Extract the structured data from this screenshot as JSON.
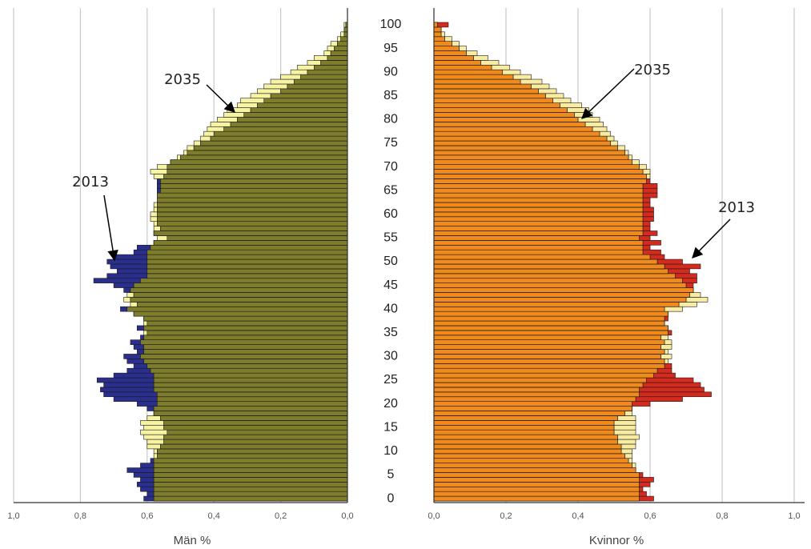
{
  "chart_data": [
    {
      "type": "bar",
      "orientation": "horizontal",
      "direction": "left",
      "xlabel": "Män %",
      "xlim": [
        1,
        0
      ],
      "xticks": [
        {
          "value": 1,
          "label": "1,0"
        },
        {
          "value": 0.8,
          "label": "0,8"
        },
        {
          "value": 0.6,
          "label": "0,6"
        },
        {
          "value": 0.4,
          "label": "0,4"
        },
        {
          "value": 0.2,
          "label": "0,2"
        },
        {
          "value": 0,
          "label": "0,0"
        }
      ],
      "grid": true,
      "overlap_color": "#7e7d2c",
      "y": [
        0,
        1,
        2,
        3,
        4,
        5,
        6,
        7,
        8,
        9,
        10,
        11,
        12,
        13,
        14,
        15,
        16,
        17,
        18,
        19,
        20,
        21,
        22,
        23,
        24,
        25,
        26,
        27,
        28,
        29,
        30,
        31,
        32,
        33,
        34,
        35,
        36,
        37,
        38,
        39,
        40,
        41,
        42,
        43,
        44,
        45,
        46,
        47,
        48,
        49,
        50,
        51,
        52,
        53,
        54,
        55,
        56,
        57,
        58,
        59,
        60,
        61,
        62,
        63,
        64,
        65,
        66,
        67,
        68,
        69,
        70,
        71,
        72,
        73,
        74,
        75,
        76,
        77,
        78,
        79,
        80,
        81,
        82,
        83,
        84,
        85,
        86,
        87,
        88,
        89,
        90,
        91,
        92,
        93,
        94,
        95,
        96,
        97,
        98,
        99,
        100
      ],
      "ylim": [
        -0.5,
        100.5
      ],
      "yticks": [
        0,
        5,
        10,
        15,
        20,
        25,
        30,
        35,
        40,
        45,
        50,
        55,
        60,
        65,
        70,
        75,
        80,
        85,
        90,
        95,
        100
      ],
      "series": [
        {
          "name": "2013",
          "color": "#2a2e8c",
          "values": [
            0.61,
            0.6,
            0.62,
            0.63,
            0.62,
            0.64,
            0.66,
            0.62,
            0.59,
            0.57,
            0.57,
            0.56,
            0.55,
            0.55,
            0.54,
            0.55,
            0.55,
            0.56,
            0.58,
            0.6,
            0.63,
            0.7,
            0.73,
            0.74,
            0.73,
            0.75,
            0.7,
            0.66,
            0.64,
            0.66,
            0.67,
            0.63,
            0.64,
            0.65,
            0.62,
            0.6,
            0.63,
            0.6,
            0.61,
            0.64,
            0.68,
            0.63,
            0.65,
            0.64,
            0.67,
            0.7,
            0.76,
            0.72,
            0.69,
            0.71,
            0.72,
            0.7,
            0.64,
            0.63,
            0.58,
            0.54,
            0.58,
            0.56,
            0.57,
            0.57,
            0.57,
            0.57,
            0.57,
            0.57,
            0.57,
            0.57,
            0.57,
            0.57,
            0.55,
            0.54,
            0.54,
            0.53,
            0.5,
            0.48,
            0.46,
            0.44,
            0.41,
            0.4,
            0.37,
            0.35,
            0.33,
            0.31,
            0.29,
            0.27,
            0.25,
            0.23,
            0.2,
            0.18,
            0.16,
            0.14,
            0.12,
            0.1,
            0.08,
            0.06,
            0.05,
            0.04,
            0.03,
            0.02,
            0.01,
            0.01,
            0.005
          ]
        },
        {
          "name": "2035",
          "color": "#f6f4a2",
          "values": [
            0.58,
            0.58,
            0.58,
            0.58,
            0.58,
            0.58,
            0.58,
            0.58,
            0.58,
            0.58,
            0.58,
            0.6,
            0.6,
            0.61,
            0.62,
            0.61,
            0.62,
            0.6,
            0.58,
            0.58,
            0.57,
            0.57,
            0.57,
            0.58,
            0.58,
            0.58,
            0.58,
            0.59,
            0.6,
            0.61,
            0.62,
            0.61,
            0.61,
            0.62,
            0.61,
            0.61,
            0.61,
            0.61,
            0.61,
            0.64,
            0.66,
            0.65,
            0.67,
            0.66,
            0.65,
            0.64,
            0.62,
            0.6,
            0.6,
            0.6,
            0.6,
            0.6,
            0.6,
            0.59,
            0.58,
            0.57,
            0.58,
            0.58,
            0.58,
            0.59,
            0.59,
            0.58,
            0.58,
            0.57,
            0.57,
            0.56,
            0.56,
            0.56,
            0.58,
            0.59,
            0.57,
            0.53,
            0.51,
            0.49,
            0.48,
            0.46,
            0.44,
            0.43,
            0.42,
            0.41,
            0.39,
            0.37,
            0.36,
            0.33,
            0.32,
            0.29,
            0.27,
            0.25,
            0.23,
            0.2,
            0.17,
            0.15,
            0.12,
            0.1,
            0.07,
            0.06,
            0.05,
            0.03,
            0.02,
            0.01,
            0.01
          ]
        }
      ]
    },
    {
      "type": "bar",
      "orientation": "horizontal",
      "direction": "right",
      "xlabel": "Kvinnor %",
      "xlim": [
        0,
        1
      ],
      "xticks": [
        {
          "value": 0,
          "label": "0,0"
        },
        {
          "value": 0.2,
          "label": "0,2"
        },
        {
          "value": 0.4,
          "label": "0,4"
        },
        {
          "value": 0.6,
          "label": "0,6"
        },
        {
          "value": 0.8,
          "label": "0,8"
        },
        {
          "value": 1,
          "label": "1,0"
        }
      ],
      "grid": true,
      "overlap_color": "#f08a1c",
      "y": [
        0,
        1,
        2,
        3,
        4,
        5,
        6,
        7,
        8,
        9,
        10,
        11,
        12,
        13,
        14,
        15,
        16,
        17,
        18,
        19,
        20,
        21,
        22,
        23,
        24,
        25,
        26,
        27,
        28,
        29,
        30,
        31,
        32,
        33,
        34,
        35,
        36,
        37,
        38,
        39,
        40,
        41,
        42,
        43,
        44,
        45,
        46,
        47,
        48,
        49,
        50,
        51,
        52,
        53,
        54,
        55,
        56,
        57,
        58,
        59,
        60,
        61,
        62,
        63,
        64,
        65,
        66,
        67,
        68,
        69,
        70,
        71,
        72,
        73,
        74,
        75,
        76,
        77,
        78,
        79,
        80,
        81,
        82,
        83,
        84,
        85,
        86,
        87,
        88,
        89,
        90,
        91,
        92,
        93,
        94,
        95,
        96,
        97,
        98,
        99,
        100
      ],
      "ylim": [
        -0.5,
        100.5
      ],
      "series": [
        {
          "name": "2013",
          "color": "#d42b1e",
          "values": [
            0.61,
            0.59,
            0.58,
            0.6,
            0.61,
            0.58,
            0.56,
            0.55,
            0.54,
            0.53,
            0.52,
            0.52,
            0.51,
            0.51,
            0.5,
            0.5,
            0.5,
            0.51,
            0.53,
            0.55,
            0.6,
            0.69,
            0.77,
            0.75,
            0.74,
            0.72,
            0.67,
            0.66,
            0.66,
            0.64,
            0.63,
            0.64,
            0.63,
            0.64,
            0.63,
            0.66,
            0.65,
            0.64,
            0.65,
            0.65,
            0.64,
            0.68,
            0.7,
            0.71,
            0.72,
            0.72,
            0.73,
            0.73,
            0.71,
            0.74,
            0.69,
            0.64,
            0.63,
            0.6,
            0.63,
            0.6,
            0.62,
            0.6,
            0.6,
            0.61,
            0.61,
            0.61,
            0.6,
            0.6,
            0.62,
            0.62,
            0.62,
            0.6,
            0.59,
            0.58,
            0.57,
            0.55,
            0.54,
            0.53,
            0.51,
            0.49,
            0.48,
            0.46,
            0.44,
            0.42,
            0.4,
            0.39,
            0.37,
            0.35,
            0.33,
            0.31,
            0.29,
            0.27,
            0.24,
            0.22,
            0.19,
            0.16,
            0.13,
            0.11,
            0.09,
            0.07,
            0.05,
            0.03,
            0.02,
            0.02,
            0.04
          ]
        },
        {
          "name": "2035",
          "color": "#f8eba2",
          "values": [
            0.57,
            0.57,
            0.57,
            0.57,
            0.57,
            0.57,
            0.56,
            0.56,
            0.55,
            0.55,
            0.55,
            0.56,
            0.56,
            0.57,
            0.56,
            0.56,
            0.56,
            0.56,
            0.55,
            0.55,
            0.55,
            0.56,
            0.57,
            0.57,
            0.58,
            0.59,
            0.61,
            0.62,
            0.64,
            0.65,
            0.66,
            0.65,
            0.66,
            0.66,
            0.65,
            0.65,
            0.65,
            0.64,
            0.64,
            0.65,
            0.69,
            0.73,
            0.76,
            0.74,
            0.72,
            0.7,
            0.69,
            0.67,
            0.65,
            0.64,
            0.62,
            0.6,
            0.58,
            0.58,
            0.58,
            0.57,
            0.58,
            0.58,
            0.58,
            0.58,
            0.58,
            0.58,
            0.58,
            0.58,
            0.58,
            0.58,
            0.58,
            0.59,
            0.6,
            0.6,
            0.59,
            0.57,
            0.55,
            0.54,
            0.53,
            0.51,
            0.5,
            0.49,
            0.48,
            0.47,
            0.46,
            0.44,
            0.43,
            0.41,
            0.38,
            0.36,
            0.34,
            0.32,
            0.3,
            0.27,
            0.24,
            0.21,
            0.18,
            0.15,
            0.12,
            0.09,
            0.07,
            0.05,
            0.03,
            0.02,
            0.01
          ]
        }
      ]
    }
  ]
}
